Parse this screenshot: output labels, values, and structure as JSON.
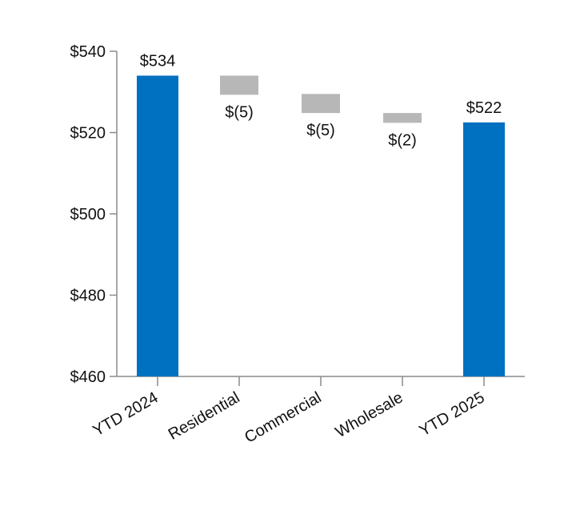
{
  "chart_data": {
    "type": "bar",
    "subtype": "waterfall",
    "categories": [
      "YTD 2024",
      "Residential",
      "Commercial",
      "Wholesale",
      "YTD 2025"
    ],
    "bars": [
      {
        "category": "YTD 2024",
        "kind": "total",
        "start": 460,
        "end": 534,
        "label": "$534"
      },
      {
        "category": "Residential",
        "kind": "delta",
        "start": 534,
        "end": 529.3,
        "label": "$(5)"
      },
      {
        "category": "Commercial",
        "kind": "delta",
        "start": 529.5,
        "end": 524.8,
        "label": "$(5)"
      },
      {
        "category": "Wholesale",
        "kind": "delta",
        "start": 524.8,
        "end": 522.4,
        "label": "$(2)"
      },
      {
        "category": "YTD 2025",
        "kind": "total",
        "start": 460,
        "end": 522.5,
        "label": "$522"
      }
    ],
    "y_ticks": [
      {
        "value": 460,
        "label": "$460"
      },
      {
        "value": 480,
        "label": "$480"
      },
      {
        "value": 500,
        "label": "$500"
      },
      {
        "value": 520,
        "label": "$520"
      },
      {
        "value": 540,
        "label": "$540"
      }
    ],
    "ylim": [
      460,
      540
    ],
    "grid": false,
    "legend": "none",
    "colors": {
      "total": "#0070c0",
      "delta": "#b7b7b7",
      "axis": "#8c8c8c",
      "text": "#111111"
    }
  }
}
